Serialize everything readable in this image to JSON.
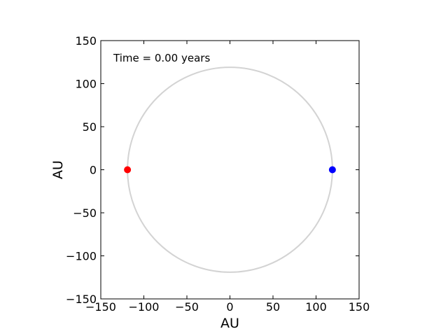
{
  "chart_data": {
    "type": "scatter",
    "annotation": "Time = 0.00 years",
    "xlabel": "AU",
    "ylabel": "AU",
    "xlim": [
      -150,
      150
    ],
    "ylim": [
      -150,
      150
    ],
    "xticks": [
      -150,
      -100,
      -50,
      0,
      50,
      100,
      150
    ],
    "yticks": [
      -150,
      -100,
      -50,
      0,
      50,
      100,
      150
    ],
    "xtick_labels": [
      "−150",
      "−100",
      "−50",
      "0",
      "50",
      "100",
      "150"
    ],
    "ytick_labels": [
      "−150",
      "−100",
      "−50",
      "0",
      "50",
      "100",
      "150"
    ],
    "grid": false,
    "orbit": {
      "center": [
        0,
        0
      ],
      "radius": 119,
      "color": "#d3d3d3"
    },
    "points": [
      {
        "x": -119,
        "y": 0,
        "color": "#ff0000"
      },
      {
        "x": 119,
        "y": 0,
        "color": "#0000ff"
      }
    ]
  }
}
